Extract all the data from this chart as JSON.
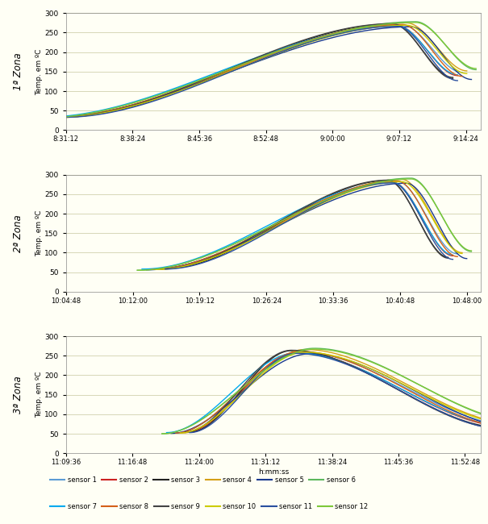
{
  "background_color": "#fffff5",
  "panel_bg": "#fffff5",
  "ylabel": "Temp. em ºC",
  "xlabel": "h:mm:ss",
  "zones": [
    "1ª Zona",
    "2ª Zona",
    "3ª Zona"
  ],
  "zone_ylim": [
    0,
    300
  ],
  "zone_yticks": [
    0,
    50,
    100,
    150,
    200,
    250,
    300
  ],
  "zone1_xticks_labels": [
    "8:31:12",
    "8:38:24",
    "8:45:36",
    "8:52:48",
    "9:00:00",
    "9:07:12",
    "9:14:24"
  ],
  "zone2_xticks_labels": [
    "10:04:48",
    "10:12:00",
    "10:19:12",
    "10:26:24",
    "10:33:36",
    "10:40:48",
    "10:48:00"
  ],
  "zone3_xticks_labels": [
    "11:09:36",
    "11:16:48",
    "11:24:00",
    "11:31:12",
    "11:38:24",
    "11:45:36",
    "11:52:48"
  ],
  "sensor_colors": [
    "#5b9bd5",
    "#cc2222",
    "#222222",
    "#d4a017",
    "#1a3a8f",
    "#5cb85c",
    "#00aaee",
    "#d4601a",
    "#444444",
    "#cccc00",
    "#2a4f9f",
    "#7dc83a"
  ],
  "sensor_names": [
    "sensor 1",
    "sensor 2",
    "sensor 3",
    "sensor 4",
    "sensor 5",
    "sensor 6",
    "sensor 7",
    "sensor 8",
    "sensor 9",
    "sensor 10",
    "sensor 11",
    "sensor 12"
  ],
  "linewidth": 1.0,
  "zone1_start_times": [
    30570,
    30630,
    30660,
    30600,
    30540,
    30480,
    30510,
    30570,
    30630,
    30600,
    30660,
    30480
  ],
  "zone1_peak_times": [
    32850,
    32820,
    32790,
    32880,
    32910,
    32940,
    32820,
    32850,
    32790,
    32880,
    32820,
    32940
  ],
  "zone1_end_times": [
    33240,
    33210,
    33180,
    33270,
    33300,
    33330,
    33210,
    33240,
    33180,
    33270,
    33210,
    33330
  ],
  "zone1_v_start": [
    32,
    33,
    34,
    32,
    31,
    30,
    33,
    32,
    34,
    32,
    33,
    30
  ],
  "zone1_v_peak": [
    270,
    268,
    272,
    275,
    265,
    278,
    267,
    271,
    273,
    269,
    266,
    276
  ],
  "zone1_v_end": [
    148,
    140,
    135,
    152,
    130,
    155,
    142,
    138,
    132,
    145,
    127,
    158
  ],
  "zone2_start_times": [
    36840,
    36900,
    36930,
    36870,
    36810,
    36750,
    36780,
    36840,
    36900,
    36870,
    36930,
    36750
  ],
  "zone2_peak_times": [
    38430,
    38400,
    38370,
    38460,
    38490,
    38520,
    38400,
    38430,
    38370,
    38460,
    38400,
    38520
  ],
  "zone2_end_times": [
    38820,
    38790,
    38760,
    38850,
    38880,
    38910,
    38790,
    38820,
    38760,
    38850,
    38790,
    38910
  ],
  "zone2_v_start": [
    57,
    58,
    59,
    57,
    56,
    55,
    58,
    57,
    59,
    57,
    58,
    55
  ],
  "zone2_v_peak": [
    283,
    281,
    285,
    288,
    278,
    291,
    280,
    284,
    286,
    282,
    279,
    289
  ],
  "zone2_v_end": [
    97,
    92,
    88,
    100,
    85,
    103,
    94,
    90,
    86,
    98,
    83,
    105
  ],
  "zone3_start_times": [
    40890,
    40950,
    40980,
    40920,
    40860,
    40800,
    40830,
    40890,
    40950,
    40920,
    40980,
    40800
  ],
  "zone3_peak_times": [
    41700,
    41670,
    41640,
    41730,
    41760,
    41790,
    41670,
    41700,
    41640,
    41730,
    41670,
    41790
  ],
  "zone3_end_times": [
    43080,
    43050,
    43020,
    43110,
    43140,
    43170,
    43050,
    43080,
    43020,
    43110,
    43050,
    43170
  ],
  "zone3_v_start": [
    52,
    53,
    54,
    52,
    51,
    50,
    53,
    52,
    54,
    52,
    53,
    50
  ],
  "zone3_v_peak": [
    260,
    258,
    263,
    266,
    255,
    269,
    257,
    261,
    264,
    259,
    256,
    267
  ],
  "zone3_v_end": [
    72,
    68,
    65,
    75,
    62,
    78,
    70,
    66,
    63,
    73,
    60,
    80
  ]
}
